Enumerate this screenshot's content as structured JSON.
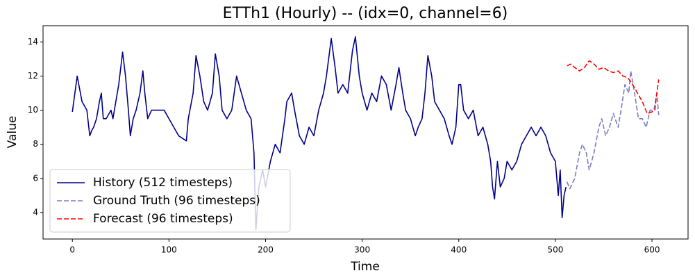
{
  "chart_data": {
    "type": "line",
    "title": "ETTh1 (Hourly) -- (idx=0, channel=6)",
    "xlabel": "Time",
    "ylabel": "Value",
    "xlim": [
      -30.35,
      637.35
    ],
    "ylim": [
      2.45,
      14.95
    ],
    "xticks": [
      0,
      100,
      200,
      300,
      400,
      500,
      600
    ],
    "yticks": [
      4,
      6,
      8,
      10,
      12,
      14
    ],
    "grid": false,
    "legend_position": "lower left",
    "series": [
      {
        "name": "History (512 timesteps)",
        "color": "#00008b",
        "dash": "solid",
        "x": [
          0,
          5,
          10,
          15,
          18,
          20,
          22,
          25,
          28,
          30,
          32,
          35,
          40,
          42,
          45,
          48,
          52,
          55,
          58,
          60,
          63,
          66,
          70,
          73,
          75,
          78,
          82,
          88,
          95,
          100,
          105,
          110,
          118,
          120,
          125,
          128,
          132,
          136,
          140,
          145,
          148,
          152,
          155,
          160,
          165,
          170,
          175,
          180,
          185,
          188,
          190,
          193,
          197,
          200,
          205,
          210,
          215,
          220,
          222,
          227,
          230,
          235,
          240,
          245,
          250,
          255,
          260,
          263,
          268,
          272,
          275,
          280,
          285,
          290,
          293,
          297,
          300,
          305,
          310,
          315,
          320,
          325,
          330,
          335,
          338,
          342,
          345,
          350,
          355,
          358,
          362,
          365,
          368,
          372,
          375,
          380,
          385,
          390,
          393,
          397,
          400,
          402,
          405,
          410,
          415,
          420,
          425,
          430,
          433,
          435,
          437,
          440,
          443,
          447,
          450,
          455,
          460,
          465,
          470,
          475,
          480,
          485,
          490,
          495,
          500,
          503,
          505,
          507,
          509,
          511
        ],
        "values": [
          9.9,
          12,
          10.5,
          10,
          8.5,
          8.8,
          9,
          9.5,
          10.5,
          11,
          9.5,
          9.5,
          10,
          9.5,
          10.5,
          11.5,
          13.4,
          12,
          10,
          8.5,
          9.5,
          10,
          11,
          12.3,
          11,
          9.5,
          10,
          10,
          10,
          9.5,
          9,
          8.5,
          8.2,
          9.5,
          11,
          13.2,
          12,
          10.5,
          10,
          11,
          13.3,
          12,
          10,
          9.5,
          10,
          12,
          11,
          10,
          9.5,
          7.5,
          3,
          5.5,
          6.5,
          5.5,
          7,
          8,
          7.5,
          9.5,
          10.5,
          11,
          10,
          8.5,
          8,
          9,
          8.5,
          10,
          11,
          12,
          14.2,
          12.5,
          11,
          11.5,
          11,
          13.5,
          14.3,
          12,
          11,
          10,
          11,
          10.5,
          12,
          11.5,
          10,
          11.5,
          12.5,
          11,
          10,
          9.5,
          8.5,
          9,
          9.5,
          11,
          13.2,
          12,
          10.5,
          10,
          9.5,
          8.5,
          8,
          9,
          11.5,
          11.5,
          10,
          9.5,
          10,
          8.5,
          9,
          8,
          7,
          5.5,
          4.8,
          7,
          5.5,
          6,
          7,
          6.5,
          7,
          8,
          8.5,
          9,
          8.5,
          9,
          8.5,
          7.5,
          7,
          5,
          6.5,
          3.7,
          5,
          5.5
        ]
      },
      {
        "name": "Ground Truth (96 timesteps)",
        "color": "#7b7bc4",
        "dash": "dashed",
        "x": [
          512,
          515,
          520,
          525,
          528,
          532,
          535,
          540,
          545,
          548,
          552,
          556,
          560,
          565,
          568,
          572,
          576,
          578,
          582,
          586,
          590,
          594,
          598,
          602,
          605,
          607
        ],
        "values": [
          5.8,
          5.4,
          6,
          7.5,
          8,
          7.5,
          6.5,
          7.5,
          9,
          9.5,
          8.5,
          9,
          9.8,
          9,
          10,
          11.5,
          11,
          12.3,
          11,
          9.5,
          9.5,
          9,
          10,
          10,
          11,
          9.7
        ]
      },
      {
        "name": "Forecast (96 timesteps)",
        "color": "#ff0000",
        "dash": "dashed",
        "x": [
          512,
          516,
          520,
          525,
          530,
          535,
          540,
          545,
          550,
          555,
          560,
          565,
          570,
          575,
          580,
          585,
          590,
          595,
          600,
          603,
          605,
          607
        ],
        "values": [
          12.6,
          12.7,
          12.5,
          12.3,
          12.5,
          12.9,
          12.7,
          12.4,
          12.5,
          12.3,
          12.2,
          12.3,
          12,
          11.9,
          11.5,
          11,
          10.5,
          9.8,
          9.9,
          10,
          11,
          11.8
        ]
      }
    ]
  }
}
